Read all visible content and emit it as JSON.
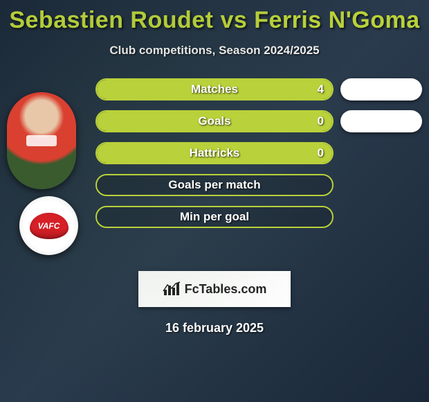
{
  "title": "Sebastien Roudet vs Ferris N'Goma",
  "subtitle": "Club competitions, Season 2024/2025",
  "colors": {
    "accent": "#b9d13a",
    "pill": "#ffffff",
    "text": "#ffffff",
    "badge_red": "#d62027"
  },
  "club_badge_text": "VAFC",
  "stats": [
    {
      "label": "Matches",
      "value": "4",
      "fill_pct": 100,
      "show_value": true,
      "has_pill": true
    },
    {
      "label": "Goals",
      "value": "0",
      "fill_pct": 100,
      "show_value": true,
      "has_pill": true
    },
    {
      "label": "Hattricks",
      "value": "0",
      "fill_pct": 100,
      "show_value": true,
      "has_pill": false
    },
    {
      "label": "Goals per match",
      "value": "",
      "fill_pct": 0,
      "show_value": false,
      "has_pill": false
    },
    {
      "label": "Min per goal",
      "value": "",
      "fill_pct": 0,
      "show_value": false,
      "has_pill": false
    }
  ],
  "footer_brand": "FcTables.com",
  "date": "16 february 2025",
  "typography": {
    "title_fontsize": 34,
    "subtitle_fontsize": 17,
    "bar_label_fontsize": 17,
    "footer_fontsize": 18,
    "date_fontsize": 18
  }
}
